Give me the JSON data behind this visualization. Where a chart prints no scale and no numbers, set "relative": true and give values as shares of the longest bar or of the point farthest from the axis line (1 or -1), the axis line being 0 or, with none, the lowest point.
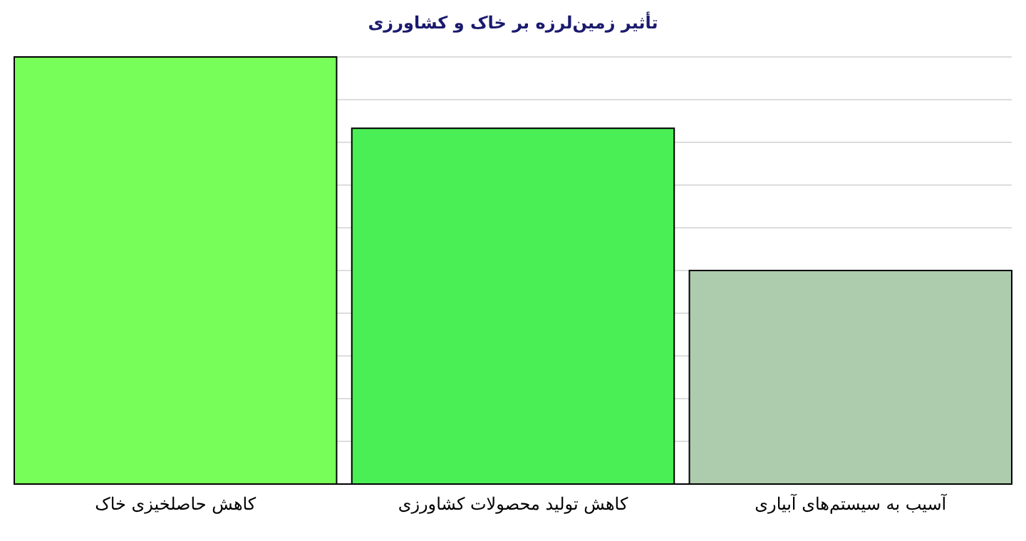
{
  "chart_data": {
    "type": "bar",
    "title": "تأثیر زمین‌لرزه بر خاک و کشاورزی",
    "categories": [
      "کاهش حاصلخیزی خاک",
      "کاهش تولید محصولات کشاورزی",
      "آسیب به سیستم‌های آبیاری"
    ],
    "values": [
      1,
      0.833,
      0.5
    ],
    "colors": [
      "#77fe58",
      "#4aee55",
      "#adcbad"
    ],
    "relative": true,
    "grid": "y"
  }
}
